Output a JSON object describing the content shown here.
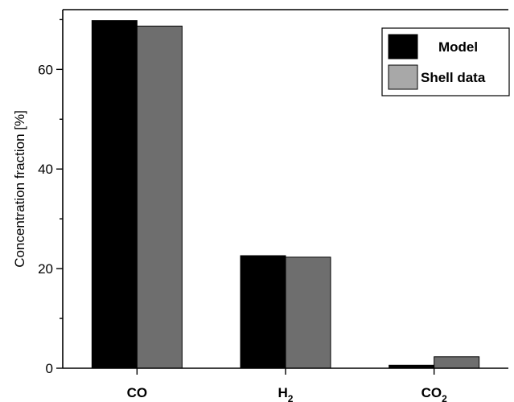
{
  "chart_data": {
    "type": "bar",
    "categories": [
      {
        "base": "CO",
        "sub": ""
      },
      {
        "base": "H",
        "sub": "2"
      },
      {
        "base": "CO",
        "sub": "2"
      }
    ],
    "series": [
      {
        "name": "Model",
        "values": [
          69.8,
          22.6,
          0.6
        ],
        "color": "#000000"
      },
      {
        "name": "Shell data",
        "values": [
          68.7,
          22.3,
          2.3
        ],
        "color": "#6e6e6e",
        "legend_color": "#a8a8a8"
      }
    ],
    "ylabel": "Concentration fraction [%]",
    "ylim": [
      0,
      72
    ],
    "yticks": [
      0,
      20,
      40,
      60
    ],
    "legend_position": "top-right",
    "grid": false
  }
}
